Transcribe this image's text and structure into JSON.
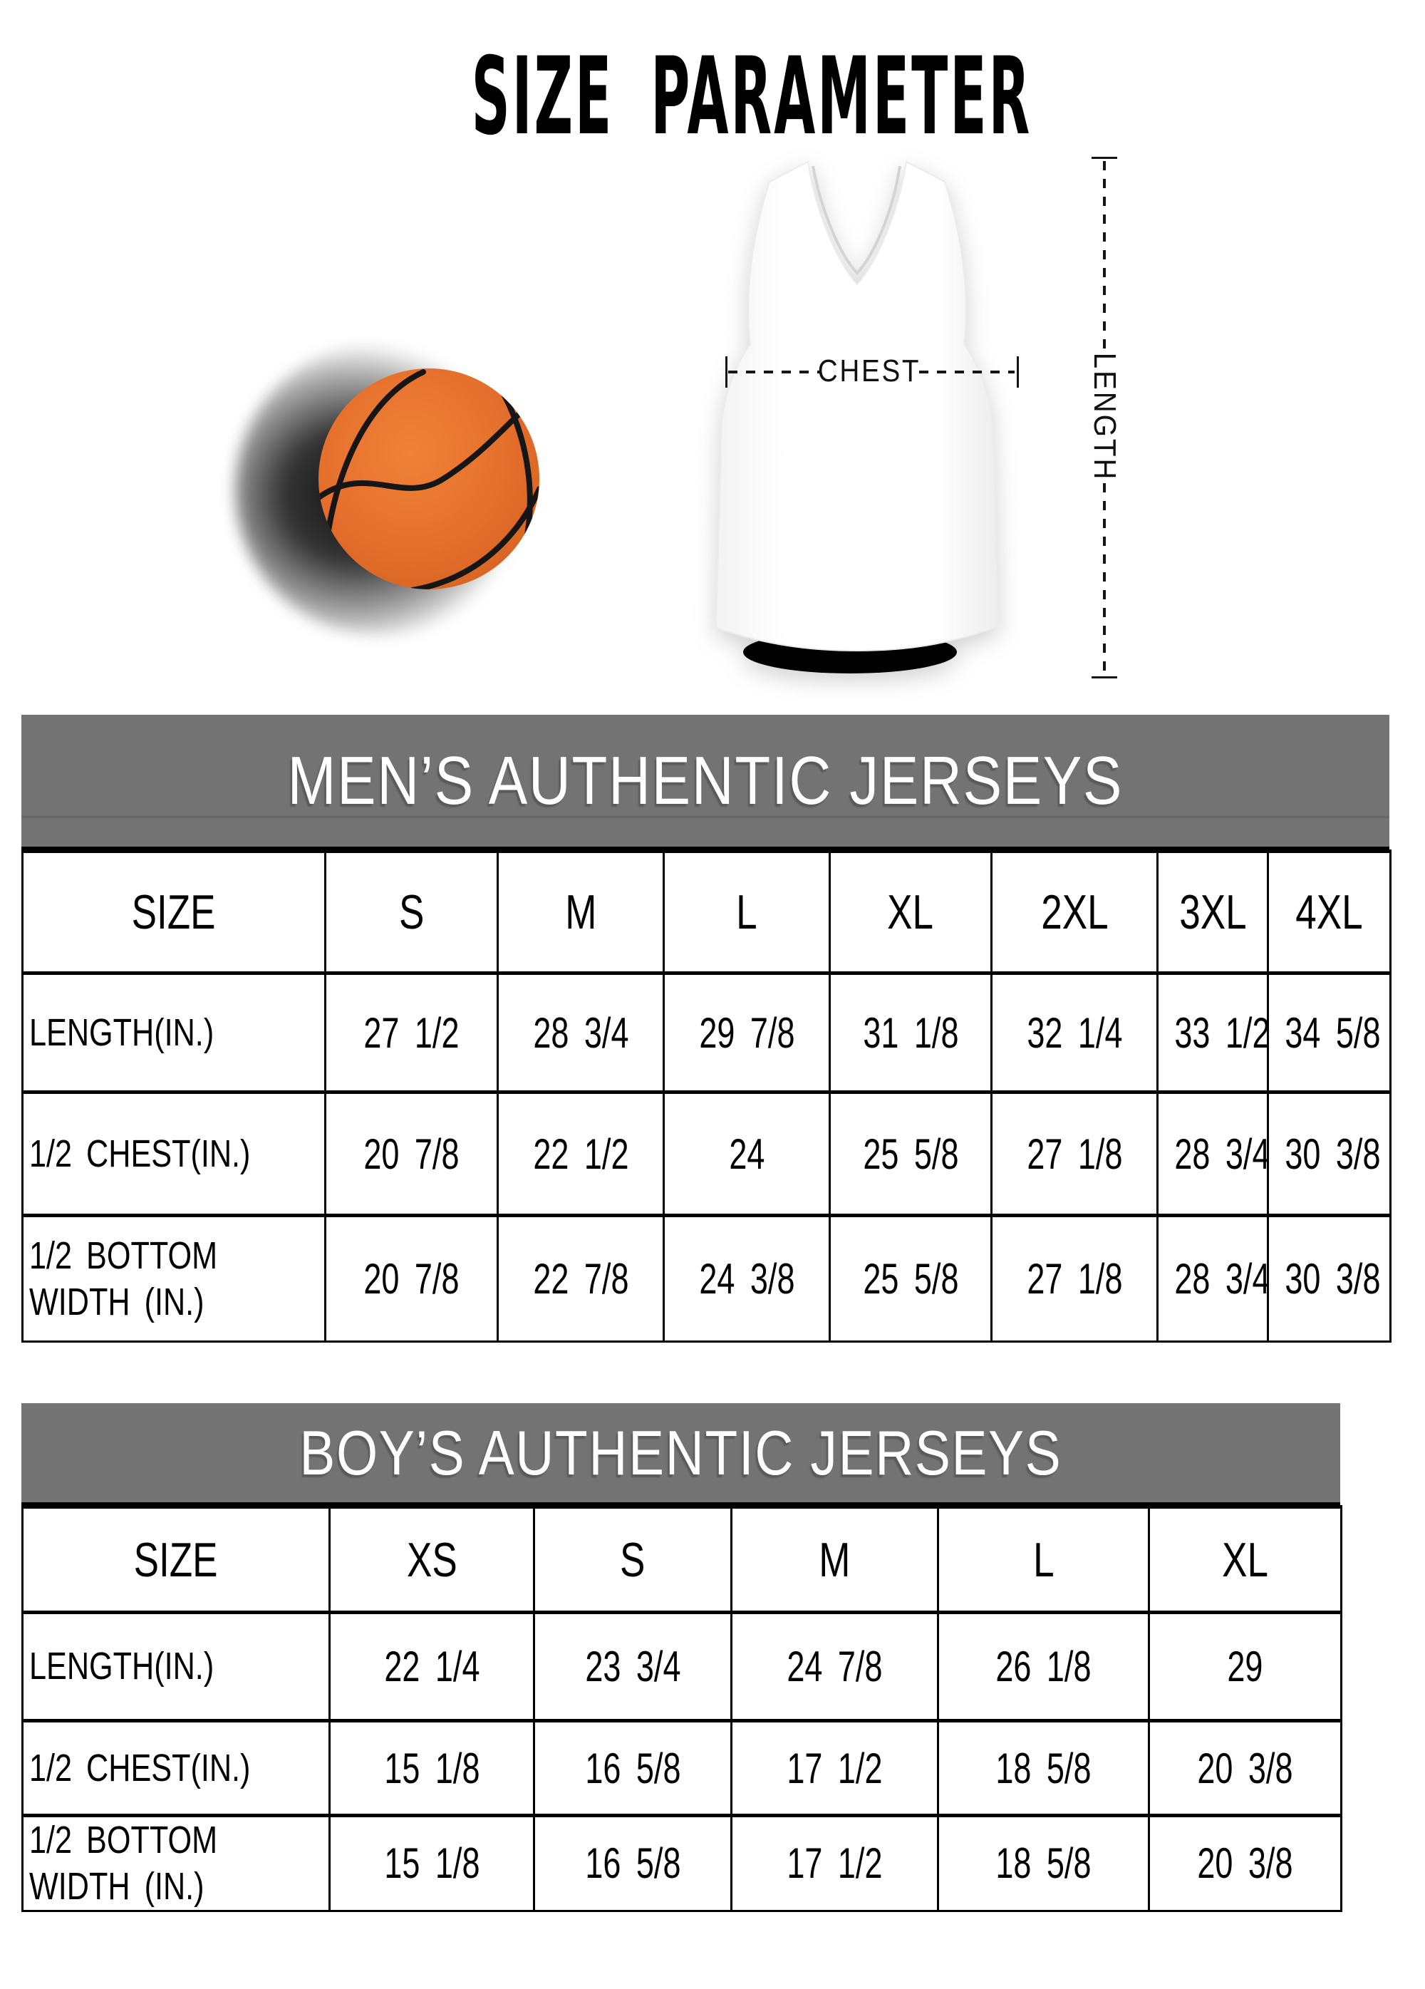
{
  "title": "SIZE PARAMETER",
  "diagram": {
    "chest_label": "CHEST",
    "length_label": "LENGTH"
  },
  "colors": {
    "banner_gray": "#737373",
    "ball_orange": "#e56f2c",
    "seam_black": "#161616",
    "table_border": "#000000"
  },
  "mens_table": {
    "banner": "MEN’S AUTHENTIC JERSEYS",
    "columns": [
      "SIZE",
      "S",
      "M",
      "L",
      "XL",
      "2XL",
      "3XL",
      "4XL"
    ],
    "rows": [
      {
        "label": "LENGTH(IN.)",
        "values": [
          "27 1/2",
          "28 3/4",
          "29 7/8",
          "31 1/8",
          "32 1/4",
          "33 1/2",
          "34 5/8"
        ]
      },
      {
        "label": "1/2 CHEST(IN.)",
        "values": [
          "20 7/8",
          "22 1/2",
          "24",
          "25 5/8",
          "27 1/8",
          "28 3/4",
          "30 3/8"
        ]
      },
      {
        "label": "1/2 BOTTOM WIDTH (IN.)",
        "values": [
          "20 7/8",
          "22 7/8",
          "24 3/8",
          "25 5/8",
          "27 1/8",
          "28 3/4",
          "30 3/8"
        ]
      }
    ]
  },
  "boys_table": {
    "banner": "BOY’S AUTHENTIC JERSEYS",
    "columns": [
      "SIZE",
      "XS",
      "S",
      "M",
      "L",
      "XL"
    ],
    "rows": [
      {
        "label": "LENGTH(IN.)",
        "values": [
          "22 1/4",
          "23 3/4",
          "24 7/8",
          "26 1/8",
          "29"
        ]
      },
      {
        "label": "1/2 CHEST(IN.)",
        "values": [
          "15 1/8",
          "16 5/8",
          "17 1/2",
          "18 5/8",
          "20 3/8"
        ]
      },
      {
        "label": "1/2 BOTTOM WIDTH (IN.)",
        "values": [
          "15 1/8",
          "16 5/8",
          "17 1/2",
          "18 5/8",
          "20 3/8"
        ]
      }
    ]
  }
}
